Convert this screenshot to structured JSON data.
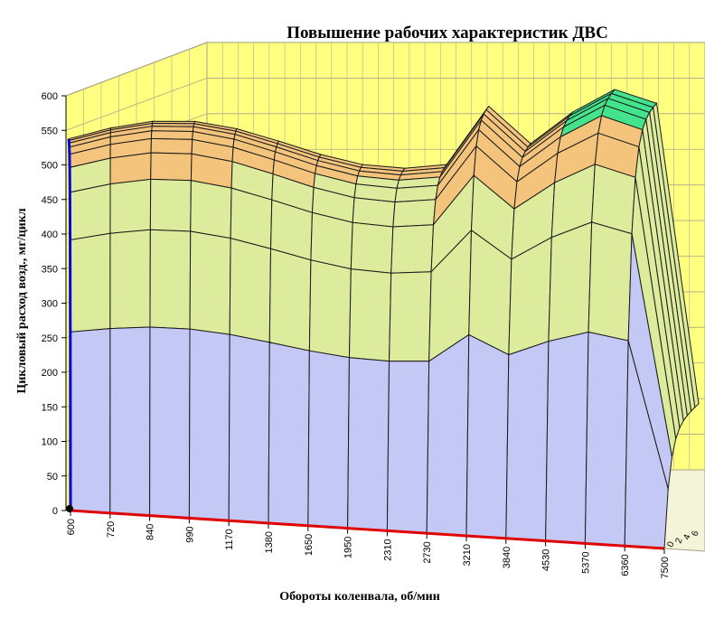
{
  "chart_data": {
    "type": "surface-3d",
    "title": "Повышение рабочих характеристик ДВС",
    "xlabel": "Обороты коленвала, об/мин",
    "ylabel": "Цикловый расход возд., мг/цикл",
    "zlim": [
      0,
      600
    ],
    "z_ticks": [
      "0",
      "50",
      "100",
      "150",
      "200",
      "250",
      "300",
      "350",
      "400",
      "450",
      "500",
      "550",
      "600"
    ],
    "x_ticks": [
      "600",
      "720",
      "840",
      "990",
      "1170",
      "1380",
      "1650",
      "1950",
      "2310",
      "2730",
      "3210",
      "3840",
      "4530",
      "5370",
      "6360",
      "7500"
    ],
    "depth_ticks": [
      "0",
      "2",
      "4",
      "6"
    ],
    "grid": true,
    "colors": {
      "back_wall": "#ffff80",
      "grid": "#b0b090",
      "mesh": "#1a1a1a",
      "front_edge": "#e00000",
      "left_edge": "#0000e0",
      "surface_low": "#c4c8f4",
      "surface_mid": "#dcec9c",
      "surface_high": "#f4c47c",
      "surface_top": "#44e48c"
    }
  }
}
